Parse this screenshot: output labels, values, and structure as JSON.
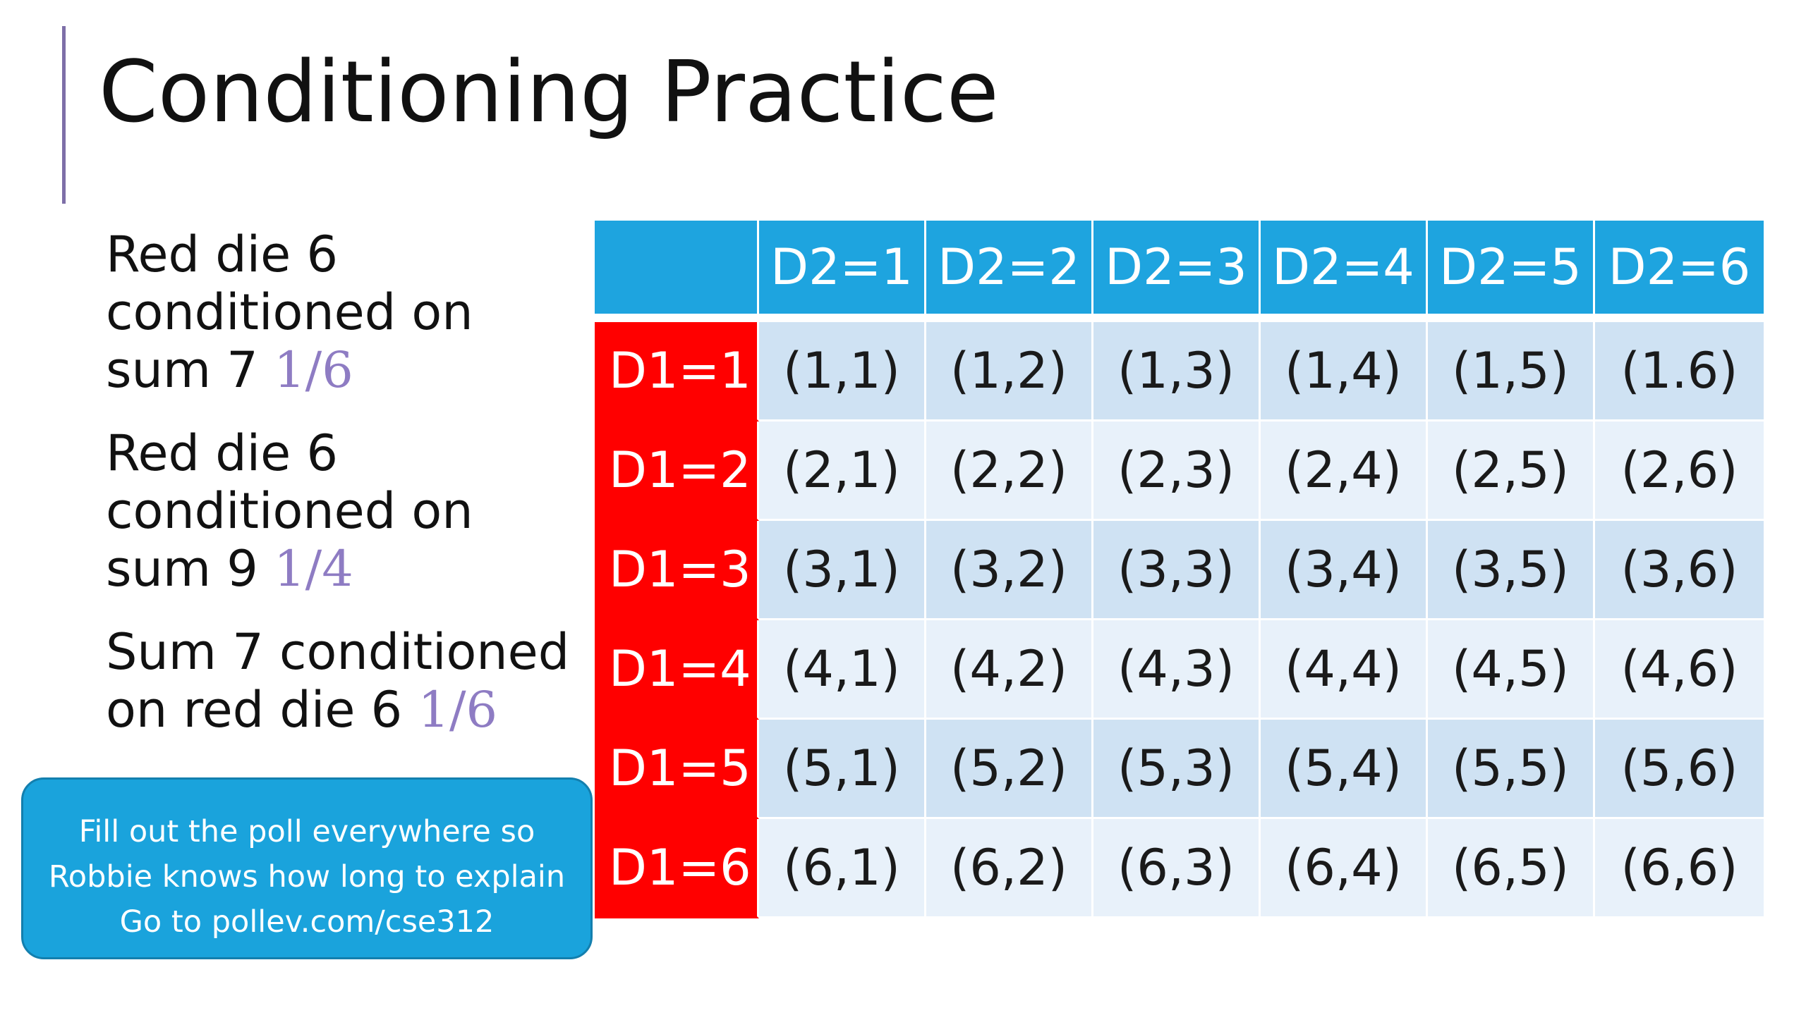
{
  "slide": {
    "title": "Conditioning Practice",
    "notes": [
      {
        "text": "Red die 6 conditioned on sum 7",
        "answer": "1/6"
      },
      {
        "text": "Red die 6 conditioned on sum 9",
        "answer": "1/4"
      },
      {
        "text": "Sum 7 conditioned on red die 6",
        "answer": "1/6"
      }
    ],
    "callout": {
      "line1": "Fill out the poll everywhere so",
      "line2": "Robbie knows how long to explain",
      "line3": "Go to pollev.com/cse312"
    },
    "table": {
      "corner": "",
      "columns": [
        "D2=1",
        "D2=2",
        "D2=3",
        "D2=4",
        "D2=5",
        "D2=6"
      ],
      "rows": [
        {
          "label": "D1=1",
          "cells": [
            "(1,1)",
            "(1,2)",
            "(1,3)",
            "(1,4)",
            "(1,5)",
            "(1.6)"
          ]
        },
        {
          "label": "D1=2",
          "cells": [
            "(2,1)",
            "(2,2)",
            "(2,3)",
            "(2,4)",
            "(2,5)",
            "(2,6)"
          ]
        },
        {
          "label": "D1=3",
          "cells": [
            "(3,1)",
            "(3,2)",
            "(3,3)",
            "(3,4)",
            "(3,5)",
            "(3,6)"
          ]
        },
        {
          "label": "D1=4",
          "cells": [
            "(4,1)",
            "(4,2)",
            "(4,3)",
            "(4,4)",
            "(4,5)",
            "(4,6)"
          ]
        },
        {
          "label": "D1=5",
          "cells": [
            "(5,1)",
            "(5,2)",
            "(5,3)",
            "(5,4)",
            "(5,5)",
            "(5,6)"
          ]
        },
        {
          "label": "D1=6",
          "cells": [
            "(6,1)",
            "(6,2)",
            "(6,3)",
            "(6,4)",
            "(6,5)",
            "(6,6)"
          ]
        }
      ]
    },
    "colors": {
      "accent_bar": "#7e6fa8",
      "answer_text": "#8e7cc3",
      "header_blue": "#1ea4df",
      "row_label_red": "#ff0000",
      "cell_dark": "#cfe2f3",
      "cell_light": "#e8f1fa",
      "callout_blue": "#1aa3dc"
    }
  }
}
